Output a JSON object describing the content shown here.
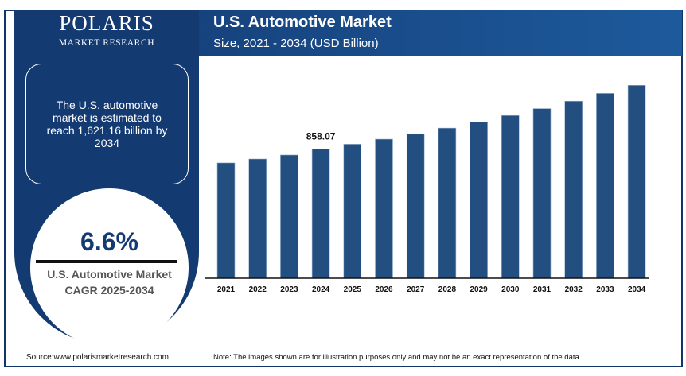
{
  "brand": {
    "name": "POLARIS",
    "tagline": "MARKET RESEARCH"
  },
  "header": {
    "title": "U.S. Automotive Market",
    "subtitle": "Size, 2021 - 2034 (USD Billion)"
  },
  "sidebar": {
    "estimate_text": "The U.S. automotive market is estimated to reach 1,621.16 billion by 2034",
    "cagr_value": "6.6%",
    "cagr_label": "U.S. Automotive Market CAGR 2025-2034"
  },
  "footer": {
    "source": "Source:www.polarismarketresearch.com",
    "note": "Note: The images shown are for illustration purposes only and may not be an exact representation of the data."
  },
  "colors": {
    "bar": "#234f80",
    "panel": "#143a72"
  },
  "chart_data": {
    "type": "bar",
    "title": "U.S. Automotive Market",
    "subtitle": "Size, 2021 - 2034 (USD Billion)",
    "categories": [
      "2021",
      "2022",
      "2023",
      "2024",
      "2025",
      "2026",
      "2027",
      "2028",
      "2029",
      "2030",
      "2031",
      "2032",
      "2033",
      "2034"
    ],
    "values": [
      690,
      737,
      785,
      858.07,
      914.7,
      975,
      1039,
      1108,
      1181,
      1259,
      1342,
      1431,
      1525,
      1621.16
    ],
    "data_labels": [
      {
        "category": "2024",
        "text": "858.07"
      }
    ],
    "grid": false,
    "legend": "none"
  }
}
